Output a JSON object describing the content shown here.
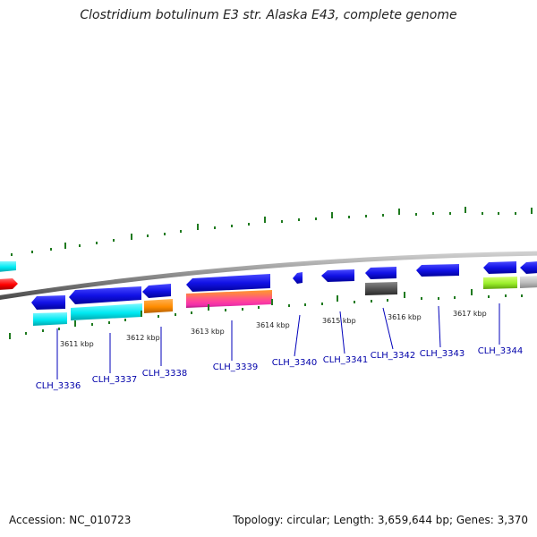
{
  "title": "Clostridium botulinum E3 str. Alaska E43, complete genome",
  "footer": {
    "accession": "Accession: NC_010723",
    "summary": "Topology: circular; Length: 3,659,644 bp; Genes: 3,370"
  },
  "scale_ticks": [
    "3611 kbp",
    "3612 kbp",
    "3613 kbp",
    "3614 kbp",
    "3615 kbp",
    "3616 kbp",
    "3617 kbp"
  ],
  "genes": [
    {
      "id": "CLH_3336",
      "color": "#0000ee"
    },
    {
      "id": "CLH_3337",
      "color": "#0000ee"
    },
    {
      "id": "CLH_3338",
      "color": "#0000ee"
    },
    {
      "id": "CLH_3339",
      "color": "#0000ee"
    },
    {
      "id": "CLH_3340",
      "color": "#0000ee"
    },
    {
      "id": "CLH_3341",
      "color": "#0000ee"
    },
    {
      "id": "CLH_3342",
      "color": "#0000ee"
    },
    {
      "id": "CLH_3343",
      "color": "#0000ee"
    },
    {
      "id": "CLH_3344",
      "color": "#0000ee"
    }
  ],
  "colors": {
    "backbone": "#888888",
    "gene_blue": "#1212e6",
    "cyan": "#00e5ee",
    "orange": "#ff8c00",
    "dark_gray": "#555555",
    "lime": "#9aee2a",
    "light_gray": "#b8b8b8",
    "red": "#ff0000",
    "tick_green": "#1f7a1f",
    "label_blue": "#0000aa"
  }
}
